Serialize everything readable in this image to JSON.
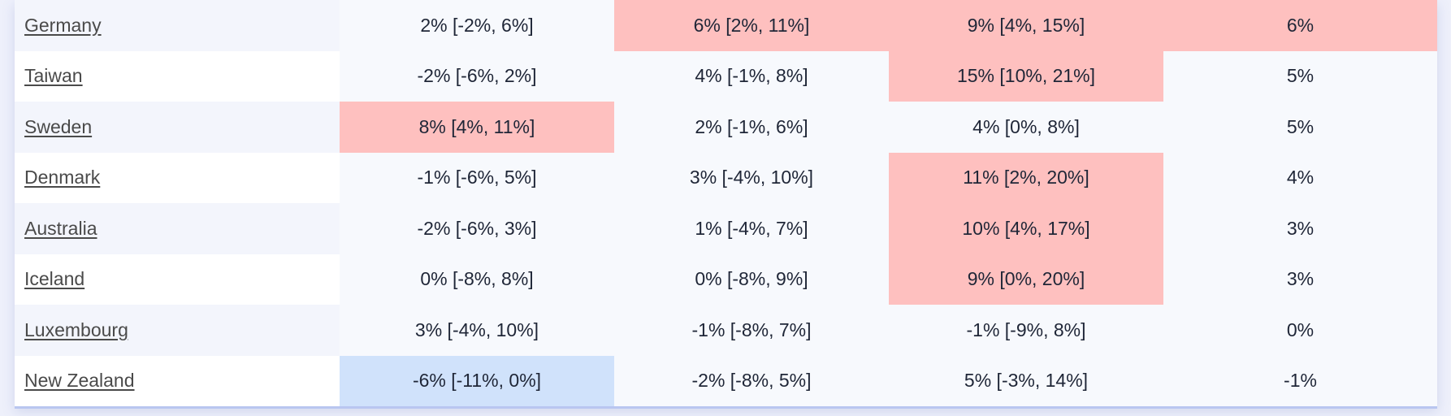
{
  "table": {
    "rows": [
      {
        "name": "Germany",
        "cells": [
          "2% [-2%, 6%]",
          "6% [2%, 11%]",
          "9% [4%, 15%]",
          "6%"
        ],
        "highlight": [
          "",
          "high",
          "high",
          "high"
        ]
      },
      {
        "name": "Taiwan",
        "cells": [
          "-2% [-6%, 2%]",
          "4% [-1%, 8%]",
          "15% [10%, 21%]",
          "5%"
        ],
        "highlight": [
          "",
          "",
          "high",
          ""
        ]
      },
      {
        "name": "Sweden",
        "cells": [
          "8% [4%, 11%]",
          "2% [-1%, 6%]",
          "4% [0%, 8%]",
          "5%"
        ],
        "highlight": [
          "high",
          "",
          "",
          ""
        ]
      },
      {
        "name": "Denmark",
        "cells": [
          "-1% [-6%, 5%]",
          "3% [-4%, 10%]",
          "11% [2%, 20%]",
          "4%"
        ],
        "highlight": [
          "",
          "",
          "high",
          ""
        ]
      },
      {
        "name": "Australia",
        "cells": [
          "-2% [-6%, 3%]",
          "1% [-4%, 7%]",
          "10% [4%, 17%]",
          "3%"
        ],
        "highlight": [
          "",
          "",
          "high",
          ""
        ]
      },
      {
        "name": "Iceland",
        "cells": [
          "0% [-8%, 8%]",
          "0% [-8%, 9%]",
          "9% [0%, 20%]",
          "3%"
        ],
        "highlight": [
          "",
          "",
          "high",
          ""
        ]
      },
      {
        "name": "Luxembourg",
        "cells": [
          "3% [-4%, 10%]",
          "-1% [-8%, 7%]",
          "-1% [-9%, 8%]",
          "0%"
        ],
        "highlight": [
          "",
          "",
          "",
          ""
        ]
      },
      {
        "name": "New Zealand",
        "cells": [
          "-6% [-11%, 0%]",
          "-2% [-8%, 5%]",
          "5% [-3%, 14%]",
          "-1%"
        ],
        "highlight": [
          "low",
          "",
          "",
          ""
        ]
      }
    ]
  },
  "colors": {
    "high": "#fec0bf",
    "low": "#d0e2fb",
    "neutral": "#f7f9fd"
  }
}
